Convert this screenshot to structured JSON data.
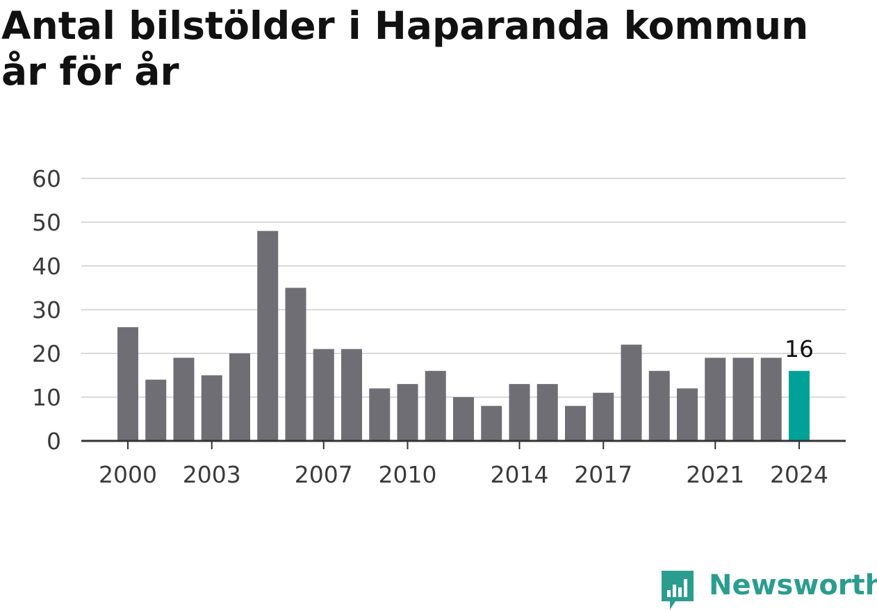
{
  "title": "Antal bilstölder i Haparanda kommun år för år",
  "brand": {
    "name": "Newsworthy",
    "icon": "newsworthy-logo-icon",
    "color": "#2a9d8f"
  },
  "chart_data": {
    "type": "bar",
    "title": "Antal bilstölder i Haparanda kommun år för år",
    "xlabel": "",
    "ylabel": "",
    "categories": [
      "2000",
      "2001",
      "2002",
      "2003",
      "2004",
      "2005",
      "2006",
      "2007",
      "2008",
      "2009",
      "2010",
      "2011",
      "2012",
      "2013",
      "2014",
      "2015",
      "2016",
      "2017",
      "2018",
      "2019",
      "2020",
      "2021",
      "2022",
      "2023",
      "2024"
    ],
    "values": [
      26,
      14,
      19,
      15,
      20,
      48,
      35,
      21,
      21,
      12,
      13,
      16,
      10,
      8,
      13,
      13,
      8,
      11,
      22,
      16,
      12,
      19,
      19,
      19,
      16
    ],
    "x_tick_labels": [
      "2000",
      "2003",
      "2007",
      "2010",
      "2014",
      "2017",
      "2021",
      "2024"
    ],
    "y_ticks": [
      0,
      10,
      20,
      30,
      40,
      50,
      60
    ],
    "ylim": [
      0,
      60
    ],
    "grid": true,
    "highlight": {
      "category": "2024",
      "label": "16"
    },
    "colors": {
      "bar": "#6f6e75",
      "highlight": "#00a297",
      "grid": "#d9d9d9",
      "axis": "#333333"
    }
  }
}
